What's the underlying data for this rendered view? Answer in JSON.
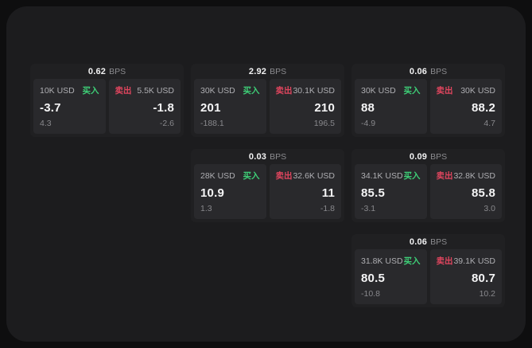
{
  "accent_colors": {
    "buy_green": "#3ecf77",
    "sell_red": "#e0455e",
    "surface": "#1c1c1e",
    "card": "#202022",
    "panel": "#29292c"
  },
  "cards": [
    {
      "bps": "0.62",
      "unit": "BPS",
      "buy": {
        "amount": "10K USD",
        "side": "买入",
        "value": "-3.7",
        "sub": "4.3"
      },
      "sell": {
        "side": "卖出",
        "amount": "5.5K USD",
        "value": "-1.8",
        "sub": "-2.6"
      }
    },
    {
      "bps": "2.92",
      "unit": "BPS",
      "buy": {
        "amount": "30K USD",
        "side": "买入",
        "value": "201",
        "sub": "-188.1"
      },
      "sell": {
        "side": "卖出",
        "amount": "30.1K USD",
        "value": "210",
        "sub": "196.5"
      }
    },
    {
      "bps": "0.06",
      "unit": "BPS",
      "buy": {
        "amount": "30K USD",
        "side": "买入",
        "value": "88",
        "sub": "-4.9"
      },
      "sell": {
        "side": "卖出",
        "amount": "30K USD",
        "value": "88.2",
        "sub": "4.7"
      }
    },
    {
      "bps": "0.03",
      "unit": "BPS",
      "buy": {
        "amount": "28K USD",
        "side": "买入",
        "value": "10.9",
        "sub": "1.3"
      },
      "sell": {
        "side": "卖出",
        "amount": "32.6K USD",
        "value": "11",
        "sub": "-1.8"
      }
    },
    {
      "bps": "0.09",
      "unit": "BPS",
      "buy": {
        "amount": "34.1K USD",
        "side": "买入",
        "value": "85.5",
        "sub": "-3.1"
      },
      "sell": {
        "side": "卖出",
        "amount": "32.8K USD",
        "value": "85.8",
        "sub": "3.0"
      }
    },
    {
      "bps": "0.06",
      "unit": "BPS",
      "buy": {
        "amount": "31.8K USD",
        "side": "买入",
        "value": "80.5",
        "sub": "-10.8"
      },
      "sell": {
        "side": "卖出",
        "amount": "39.1K USD",
        "value": "80.7",
        "sub": "10.2"
      }
    }
  ]
}
